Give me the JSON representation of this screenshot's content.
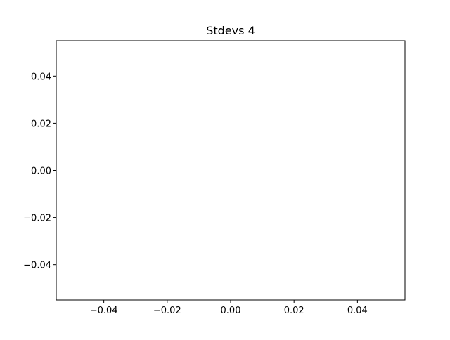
{
  "chart_data": {
    "type": "line",
    "title": "Stdevs 4",
    "xlabel": "",
    "ylabel": "",
    "xlim": [
      -0.055,
      0.055
    ],
    "ylim": [
      -0.055,
      0.055
    ],
    "xticks": [
      -0.04,
      -0.02,
      0.0,
      0.02,
      0.04
    ],
    "xtick_labels": [
      "−0.04",
      "−0.02",
      "0.00",
      "0.02",
      "0.04"
    ],
    "yticks": [
      -0.04,
      -0.02,
      0.0,
      0.02,
      0.04
    ],
    "ytick_labels": [
      "−0.04",
      "−0.02",
      "0.00",
      "0.02",
      "0.04"
    ],
    "series": [],
    "grid": false,
    "legend": "none"
  }
}
